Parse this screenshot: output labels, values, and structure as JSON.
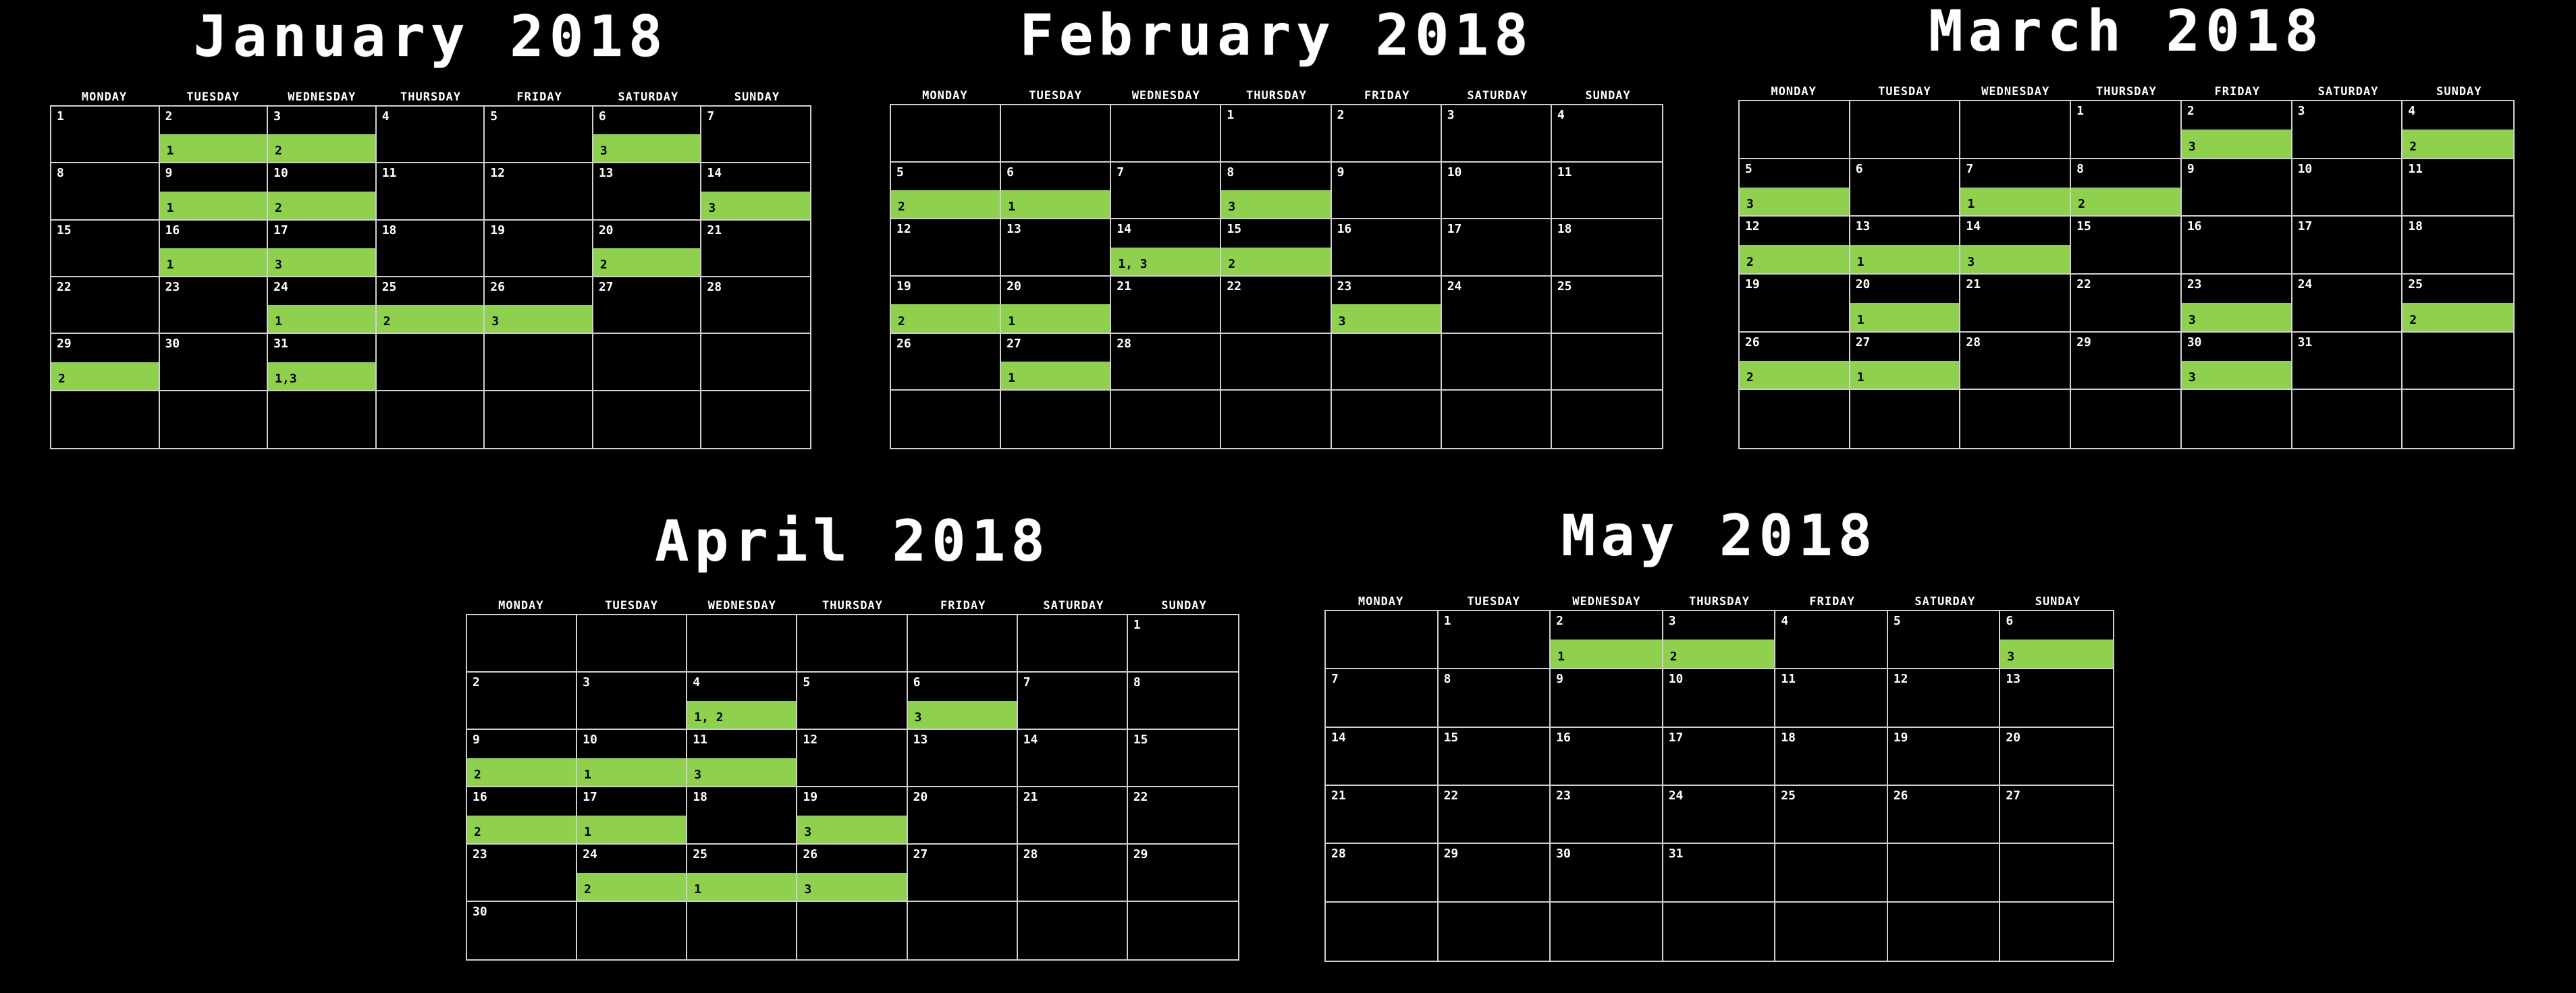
{
  "weekdays": [
    "MONDAY",
    "TUESDAY",
    "WEDNESDAY",
    "THURSDAY",
    "FRIDAY",
    "SATURDAY",
    "SUNDAY"
  ],
  "colors": {
    "background": "#000000",
    "highlight": "#8fd14f",
    "grid": "#d0d0d0",
    "text": "#ffffff"
  },
  "months": [
    {
      "title": "January 2018",
      "offset": 0,
      "days": 31,
      "marks": {
        "2": "1",
        "3": "2",
        "6": "3",
        "9": "1",
        "10": "2",
        "14": "3",
        "16": "1",
        "17": "3",
        "20": "2",
        "24": "1",
        "25": "2",
        "26": "3",
        "29": "2",
        "31": "1,3"
      }
    },
    {
      "title": "February 2018",
      "offset": 3,
      "days": 28,
      "marks": {
        "5": "2",
        "6": "1",
        "8": "3",
        "14": "1, 3",
        "15": "2",
        "19": "2",
        "20": "1",
        "23": "3",
        "27": "1"
      }
    },
    {
      "title": "March 2018",
      "offset": 3,
      "days": 31,
      "marks": {
        "2": "3",
        "4": "2",
        "5": "3",
        "7": "1",
        "8": "2",
        "12": "2",
        "13": "1",
        "14": "3",
        "20": "1",
        "23": "3",
        "25": "2",
        "26": "2",
        "27": "1",
        "30": "3"
      }
    },
    {
      "title": "April 2018",
      "offset": 6,
      "days": 30,
      "marks": {
        "4": "1, 2",
        "6": "3",
        "9": "2",
        "10": "1",
        "11": "3",
        "16": "2",
        "17": "1",
        "19": "3",
        "24": "2",
        "25": "1",
        "26": "3"
      }
    },
    {
      "title": "May 2018",
      "offset": 1,
      "days": 31,
      "marks": {
        "2": "1",
        "3": "2",
        "6": "3"
      }
    }
  ]
}
